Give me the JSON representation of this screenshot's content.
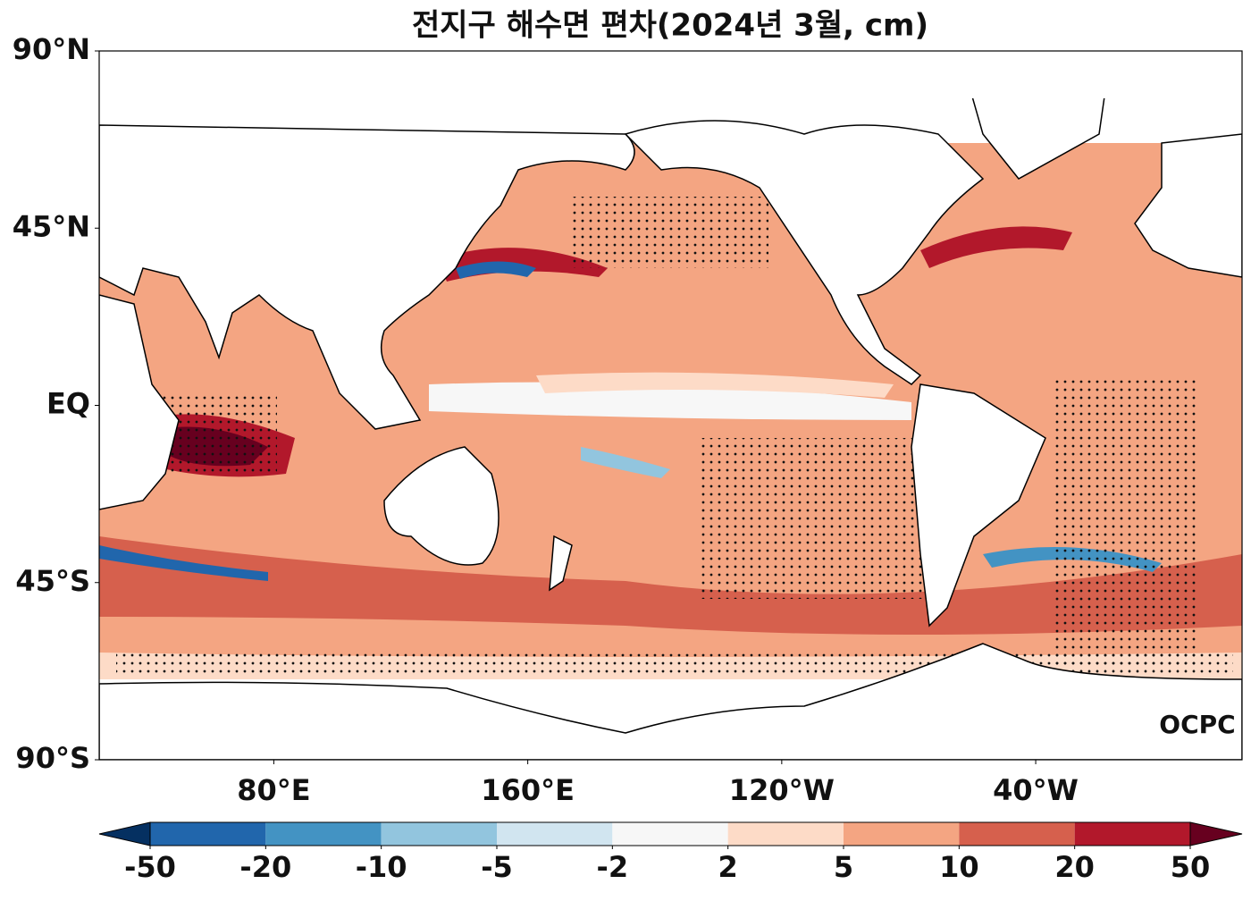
{
  "map": {
    "title": "전지구 해수면 편차(2024년 3월, cm)",
    "logo": "OCPC",
    "xlim": [
      25,
      385
    ],
    "ylim": [
      -90,
      90
    ],
    "lat_ticks": [
      {
        "value": 90,
        "label": "90°N"
      },
      {
        "value": 45,
        "label": "45°N"
      },
      {
        "value": 0,
        "label": "EQ"
      },
      {
        "value": -45,
        "label": "45°S"
      },
      {
        "value": -90,
        "label": "90°S"
      }
    ],
    "lon_ticks": [
      {
        "value": 80,
        "label": "80°E"
      },
      {
        "value": 160,
        "label": "160°E"
      },
      {
        "value": 240,
        "label": "120°W"
      },
      {
        "value": 320,
        "label": "40°W"
      }
    ],
    "colorbar": {
      "levels": [
        -50,
        -20,
        -10,
        -5,
        -2,
        2,
        5,
        10,
        20,
        50
      ],
      "colors": [
        "#2166ac",
        "#4393c3",
        "#92c5de",
        "#d1e5f0",
        "#f7f7f7",
        "#fddbc7",
        "#f4a582",
        "#d6604d",
        "#b2182b"
      ],
      "under": "#053061",
      "over": "#67001f"
    }
  }
}
